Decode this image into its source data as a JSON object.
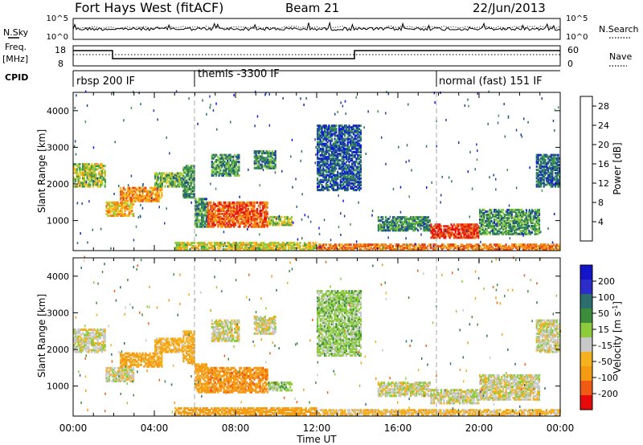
{
  "header": {
    "radar": "Fort Hays West (fitACF)",
    "beam": "Beam 21",
    "date": "22/Jun/2013"
  },
  "left_labels": {
    "nsky": "N.Sky",
    "freq_line1": "Freq.",
    "freq_line2": "[MHz]",
    "cpid": "CPID"
  },
  "right_labels": {
    "nsearch": "N.Search",
    "nave": "Nave"
  },
  "noise_panel": {
    "left_ticks": [
      "10^5",
      "10^0"
    ],
    "right_ticks": [
      "10^5",
      "10^0"
    ]
  },
  "freq_panel": {
    "left_ticks": [
      "18",
      "8"
    ],
    "right_ticks": [
      "60",
      "0"
    ]
  },
  "cpid_panel": {
    "modes": [
      {
        "label": "rbsp 200 IF",
        "start_hour": 0
      },
      {
        "label": "themis -3300 IF",
        "start_hour": 6
      },
      {
        "label": "normal (fast) 151 IF",
        "start_hour": 18
      }
    ]
  },
  "chart_data": [
    {
      "type": "heatmap",
      "title": "Power",
      "xlabel": "Time UT",
      "ylabel": "Slant Range [km]",
      "xlim": [
        0,
        24
      ],
      "ylim": [
        180,
        4500
      ],
      "x_tick_labels": [
        "00:00",
        "04:00",
        "08:00",
        "12:00",
        "16:00",
        "20:00",
        "00:00"
      ],
      "y_ticks": [
        1000,
        2000,
        3000,
        4000
      ],
      "colorbar": {
        "label": "Power [dB]",
        "ticks": [
          4,
          8,
          12,
          16,
          20,
          24,
          28
        ],
        "range": [
          0,
          30
        ],
        "colors": [
          "#0a14e6",
          "#1e3ca8",
          "#2c6e6e",
          "#3c9a4a",
          "#8ccc3c",
          "#f5c21e",
          "#f59a14",
          "#f07214",
          "#e63c14",
          "#e60a0a"
        ]
      },
      "echo_regions": [
        {
          "t0": 0.0,
          "t1": 1.6,
          "r0": 1900,
          "r1": 2550,
          "power": 14
        },
        {
          "t0": 1.6,
          "t1": 3.0,
          "r0": 1100,
          "r1": 1500,
          "power": 18
        },
        {
          "t0": 2.3,
          "t1": 4.4,
          "r0": 1500,
          "r1": 1900,
          "power": 20
        },
        {
          "t0": 4.0,
          "t1": 5.4,
          "r0": 1900,
          "r1": 2300,
          "power": 12
        },
        {
          "t0": 5.4,
          "t1": 6.0,
          "r0": 1600,
          "r1": 2500,
          "power": 10
        },
        {
          "t0": 6.0,
          "t1": 6.6,
          "r0": 800,
          "r1": 1600,
          "power": 10
        },
        {
          "t0": 6.6,
          "t1": 9.6,
          "r0": 800,
          "r1": 1500,
          "power": 24
        },
        {
          "t0": 9.6,
          "t1": 10.8,
          "r0": 850,
          "r1": 1100,
          "power": 14
        },
        {
          "t0": 6.8,
          "t1": 8.2,
          "r0": 2200,
          "r1": 2800,
          "power": 10
        },
        {
          "t0": 8.9,
          "t1": 10.0,
          "r0": 2400,
          "r1": 2900,
          "power": 9
        },
        {
          "t0": 12.0,
          "t1": 14.2,
          "r0": 1800,
          "r1": 3600,
          "power": 6
        },
        {
          "t0": 15.0,
          "t1": 17.6,
          "r0": 700,
          "r1": 1100,
          "power": 9
        },
        {
          "t0": 17.6,
          "t1": 20.0,
          "r0": 500,
          "r1": 900,
          "power": 26
        },
        {
          "t0": 20.0,
          "t1": 23.0,
          "r0": 600,
          "r1": 1300,
          "power": 10
        },
        {
          "t0": 22.8,
          "t1": 24.0,
          "r0": 1900,
          "r1": 2800,
          "power": 7
        },
        {
          "t0": 5.0,
          "t1": 12.0,
          "r0": 180,
          "r1": 400,
          "power": 16
        },
        {
          "t0": 12.0,
          "t1": 24.0,
          "r0": 180,
          "r1": 350,
          "power": 22
        }
      ]
    },
    {
      "type": "heatmap",
      "title": "Velocity",
      "xlabel": "Time UT",
      "ylabel": "Slant Range [km]",
      "xlim": [
        0,
        24
      ],
      "ylim": [
        180,
        4500
      ],
      "x_tick_labels": [
        "00:00",
        "04:00",
        "08:00",
        "12:00",
        "16:00",
        "20:00",
        "00:00"
      ],
      "y_ticks": [
        1000,
        2000,
        3000,
        4000
      ],
      "colorbar": {
        "label": "Velocity [m s^-1]",
        "tick_labels": [
          "200",
          "100",
          "50",
          "15",
          "-15",
          "-50",
          "-100",
          "-200"
        ],
        "colors": [
          "#1414c8",
          "#2c2cc8",
          "#2c6e6e",
          "#3c8c3c",
          "#8ccc3c",
          "#c8c8c8",
          "#f5b21e",
          "#f59a14",
          "#f05a14",
          "#e60a0a"
        ]
      },
      "echo_regions": [
        {
          "t0": 0.0,
          "t1": 1.6,
          "r0": 1900,
          "r1": 2550,
          "velocity": 0
        },
        {
          "t0": 1.6,
          "t1": 3.0,
          "r0": 1100,
          "r1": 1500,
          "velocity": 0
        },
        {
          "t0": 2.3,
          "t1": 4.4,
          "r0": 1500,
          "r1": 1900,
          "velocity": -60
        },
        {
          "t0": 4.0,
          "t1": 5.4,
          "r0": 1900,
          "r1": 2300,
          "velocity": -40
        },
        {
          "t0": 5.4,
          "t1": 6.0,
          "r0": 1600,
          "r1": 2500,
          "velocity": -40
        },
        {
          "t0": 6.0,
          "t1": 6.6,
          "r0": 800,
          "r1": 1600,
          "velocity": -60
        },
        {
          "t0": 6.6,
          "t1": 9.6,
          "r0": 800,
          "r1": 1500,
          "velocity": -80
        },
        {
          "t0": 9.6,
          "t1": 10.8,
          "r0": 850,
          "r1": 1100,
          "velocity": 30
        },
        {
          "t0": 6.8,
          "t1": 8.2,
          "r0": 2200,
          "r1": 2800,
          "velocity": 0
        },
        {
          "t0": 8.9,
          "t1": 10.0,
          "r0": 2400,
          "r1": 2900,
          "velocity": 0
        },
        {
          "t0": 12.0,
          "t1": 14.2,
          "r0": 1800,
          "r1": 3600,
          "velocity": 30
        },
        {
          "t0": 15.0,
          "t1": 17.6,
          "r0": 700,
          "r1": 1100,
          "velocity": 0
        },
        {
          "t0": 17.6,
          "t1": 20.0,
          "r0": 500,
          "r1": 900,
          "velocity": 0
        },
        {
          "t0": 20.0,
          "t1": 23.0,
          "r0": 600,
          "r1": 1300,
          "velocity": 0
        },
        {
          "t0": 22.8,
          "t1": 24.0,
          "r0": 1900,
          "r1": 2800,
          "velocity": 0
        },
        {
          "t0": 5.0,
          "t1": 12.0,
          "r0": 180,
          "r1": 400,
          "velocity": -70
        },
        {
          "t0": 12.0,
          "t1": 24.0,
          "r0": 180,
          "r1": 350,
          "velocity": -30
        }
      ]
    }
  ]
}
